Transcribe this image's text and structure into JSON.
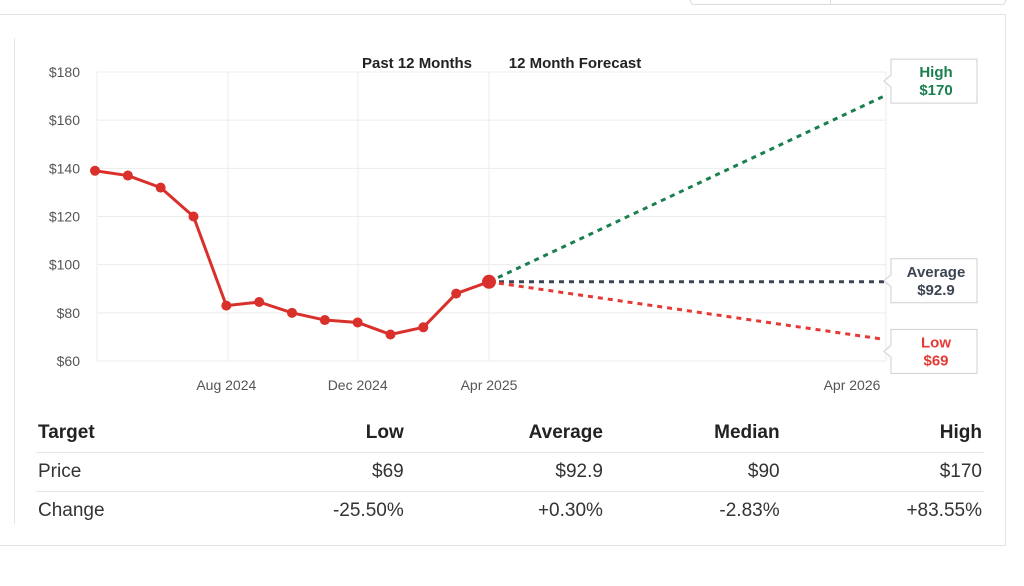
{
  "legend": {
    "past": "Past 12 Months",
    "forecast": "12 Month Forecast"
  },
  "chart_data": {
    "type": "line",
    "y_ticks": [
      "$180",
      "$160",
      "$140",
      "$120",
      "$100",
      "$80",
      "$60"
    ],
    "x_ticks": [
      "Aug 2024",
      "Dec 2024",
      "Apr 2025",
      "Apr 2026"
    ],
    "ylim": [
      60,
      180
    ],
    "series": [
      {
        "values": [
          139,
          137,
          132,
          120,
          83,
          84.5,
          80,
          77,
          76,
          71,
          74,
          88,
          92.9
        ],
        "color": "#d9302c"
      }
    ],
    "forecast": {
      "high": {
        "label": "High",
        "value_label": "$170",
        "value": 170,
        "color": "#1a7f4e"
      },
      "average": {
        "label": "Average",
        "value_label": "$92.9",
        "value": 92.9,
        "color": "#3d4555"
      },
      "low": {
        "label": "Low",
        "value_label": "$69",
        "value": 69,
        "color": "#e53935"
      }
    },
    "grid": true
  },
  "table": {
    "headers": [
      "Target",
      "Low",
      "Average",
      "Median",
      "High"
    ],
    "rows": [
      {
        "label": "Price",
        "values": [
          "$69",
          "$92.9",
          "$90",
          "$170"
        ]
      },
      {
        "label": "Change",
        "values": [
          "-25.50%",
          "+0.30%",
          "-2.83%",
          "+83.55%"
        ]
      }
    ]
  }
}
